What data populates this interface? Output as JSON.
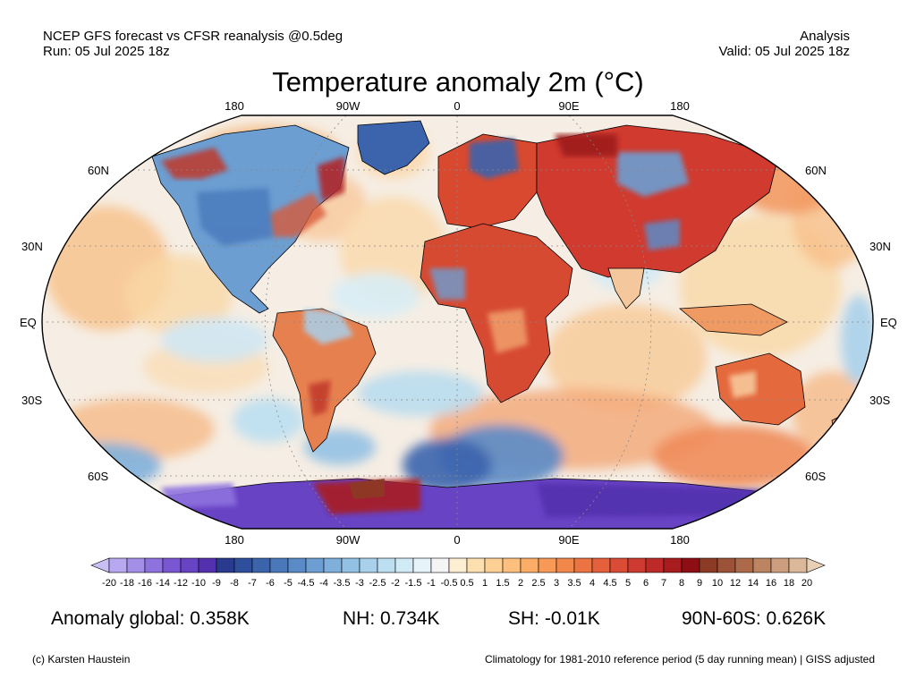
{
  "header": {
    "line1_left": "NCEP GFS forecast vs CFSR reanalysis @0.5deg",
    "line2_left": "Run: 05 Jul 2025 18z",
    "line1_right": "Analysis",
    "line2_right": "Valid: 05 Jul 2025 18z"
  },
  "title": "Temperature anomaly 2m (°C)",
  "map": {
    "projection": "Robinson",
    "lon_labels": [
      "180",
      "90W",
      "0",
      "90E",
      "180"
    ],
    "lat_labels": [
      "60N",
      "30N",
      "EQ",
      "30S",
      "60S"
    ],
    "colors": {
      "ocean_neutral": "#f2f2f2",
      "warm": "#d8322d",
      "very_warm": "#8b1a1a",
      "cool": "#a9d3ea",
      "cold": "#3e6bb0",
      "very_cold": "#6a4bc4",
      "coastline": "#000000"
    }
  },
  "colorbar": {
    "ticks": [
      "-20",
      "-18",
      "-16",
      "-14",
      "-12",
      "-10",
      "-9",
      "-8",
      "-7",
      "-6",
      "-5",
      "-4.5",
      "-4",
      "-3.5",
      "-3",
      "-2.5",
      "-2",
      "-1.5",
      "-1",
      "-0.5",
      "0.5",
      "1",
      "1.5",
      "2",
      "2.5",
      "3",
      "3.5",
      "4",
      "4.5",
      "5",
      "6",
      "7",
      "8",
      "9",
      "10",
      "12",
      "14",
      "16",
      "18",
      "20"
    ],
    "colors": [
      "#c9bff5",
      "#b7a8ef",
      "#a38ee8",
      "#8e72de",
      "#7a57d2",
      "#6843c4",
      "#5331ae",
      "#2a3a8e",
      "#2f4f9c",
      "#3b64ad",
      "#4a78bb",
      "#5b8bc7",
      "#6c9ed2",
      "#7fb0dc",
      "#93c1e4",
      "#a8d0eb",
      "#bcdff1",
      "#d1ebf6",
      "#e6f4fa",
      "#f5f5f5",
      "#fbeed2",
      "#fde0b0",
      "#fdd096",
      "#fcbf7d",
      "#fbad68",
      "#f79a58",
      "#f2874c",
      "#ec7443",
      "#e4603b",
      "#da4c35",
      "#cd3a2f",
      "#bd2a28",
      "#a81c20",
      "#8e0e16",
      "#8c3a24",
      "#9b5236",
      "#ac6a4b",
      "#bd8462",
      "#cd9e7d",
      "#dcb89a",
      "#e8cfb6"
    ]
  },
  "stats": {
    "global": "Anomaly global: 0.358K",
    "nh": "NH: 0.734K",
    "sh": "SH: -0.01K",
    "polar": "90N-60S: 0.626K"
  },
  "footer": {
    "credit": "(c) Karsten Haustein",
    "note": "Climatology for 1981-2010 reference period (5 day running mean) | GISS adjusted"
  }
}
